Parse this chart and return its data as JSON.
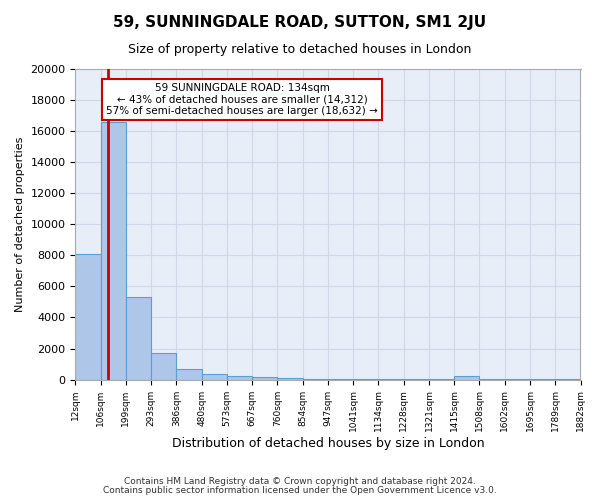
{
  "title": "59, SUNNINGDALE ROAD, SUTTON, SM1 2JU",
  "subtitle": "Size of property relative to detached houses in London",
  "xlabel": "Distribution of detached houses by size in London",
  "ylabel": "Number of detached properties",
  "bin_labels": [
    "12sqm",
    "106sqm",
    "199sqm",
    "293sqm",
    "386sqm",
    "480sqm",
    "573sqm",
    "667sqm",
    "760sqm",
    "854sqm",
    "947sqm",
    "1041sqm",
    "1134sqm",
    "1228sqm",
    "1321sqm",
    "1415sqm",
    "1508sqm",
    "1602sqm",
    "1695sqm",
    "1789sqm",
    "1882sqm"
  ],
  "bar_heights": [
    8100,
    16600,
    5300,
    1700,
    700,
    350,
    260,
    160,
    110,
    60,
    55,
    50,
    50,
    50,
    50,
    210,
    50,
    50,
    50,
    50
  ],
  "bar_color": "#aec6e8",
  "bar_edge_color": "#5a9fd4",
  "property_size": 134,
  "bin_edges": [
    12,
    106,
    199,
    293,
    386,
    480,
    573,
    667,
    760,
    854,
    947,
    1041,
    1134,
    1228,
    1321,
    1415,
    1508,
    1602,
    1695,
    1789,
    1882
  ],
  "vline_color": "#cc0000",
  "annotation_text": "59 SUNNINGDALE ROAD: 134sqm\n← 43% of detached houses are smaller (14,312)\n57% of semi-detached houses are larger (18,632) →",
  "annotation_box_color": "#cc0000",
  "ylim": [
    0,
    20000
  ],
  "yticks": [
    0,
    2000,
    4000,
    6000,
    8000,
    10000,
    12000,
    14000,
    16000,
    18000,
    20000
  ],
  "grid_color": "#d0d8e8",
  "background_color": "#e8eef8",
  "footer_line1": "Contains HM Land Registry data © Crown copyright and database right 2024.",
  "footer_line2": "Contains public sector information licensed under the Open Government Licence v3.0."
}
